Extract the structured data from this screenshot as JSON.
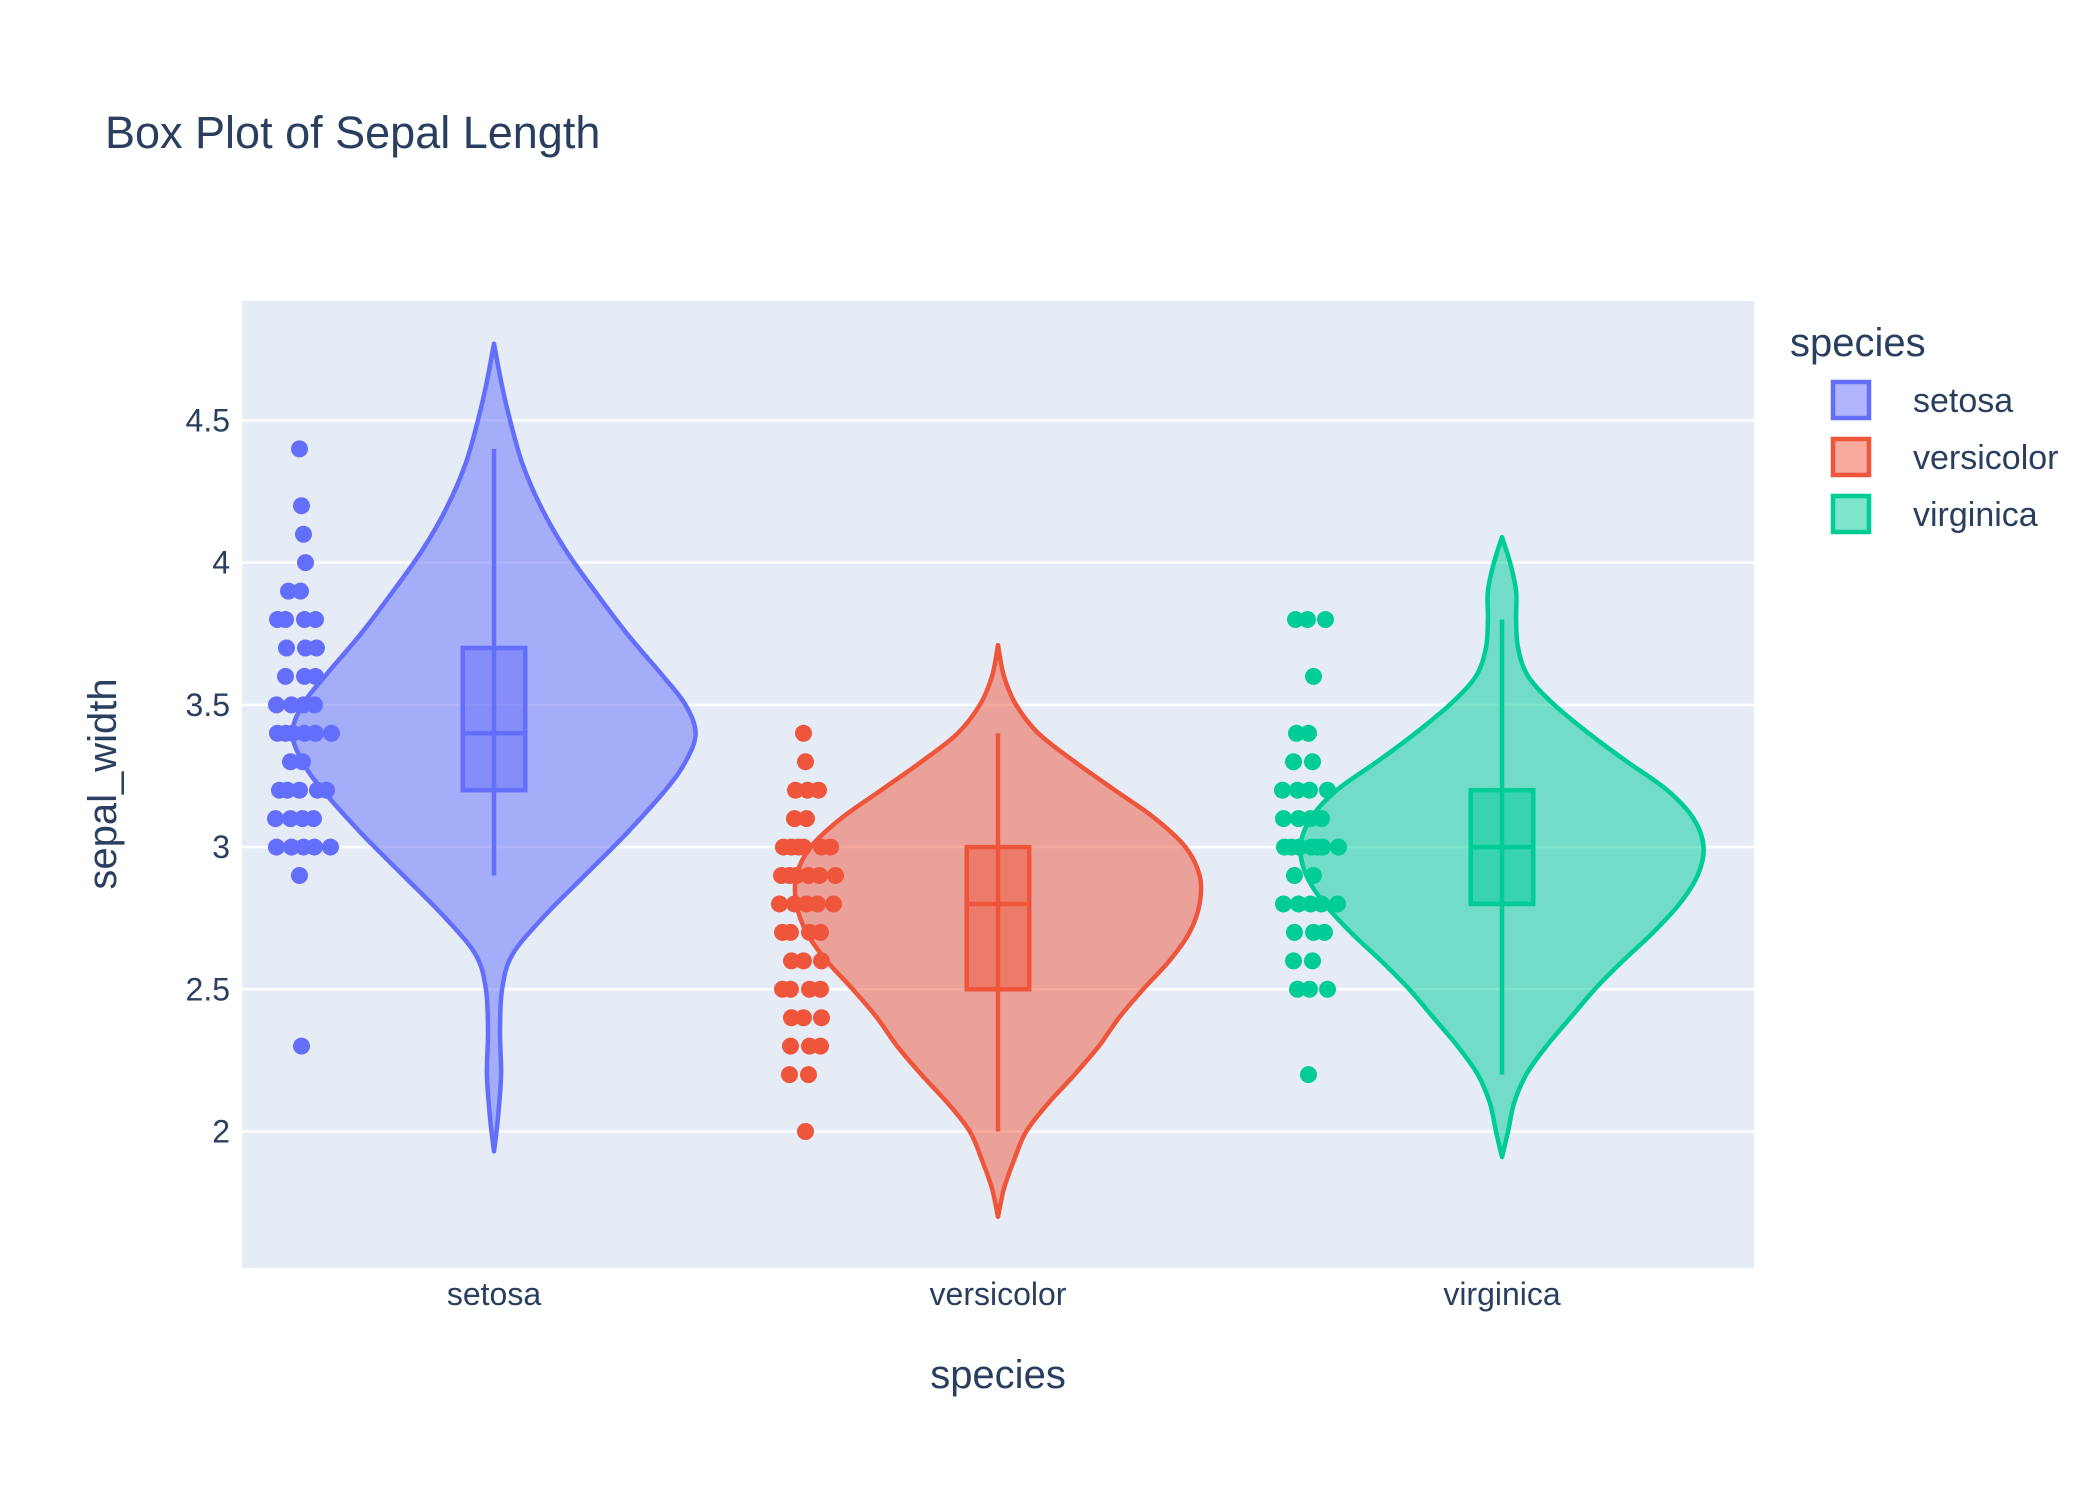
{
  "chart_data": {
    "type": "violin",
    "title": "Box Plot of Sepal Length",
    "xlabel": "species",
    "ylabel": "sepal_width",
    "categories": [
      "setosa",
      "versicolor",
      "virginica"
    ],
    "ylim": [
      1.52,
      4.92
    ],
    "yticks": [
      {
        "value": 2,
        "label": "2"
      },
      {
        "value": 2.5,
        "label": "2.5"
      },
      {
        "value": 3,
        "label": "3"
      },
      {
        "value": 3.5,
        "label": "3.5"
      },
      {
        "value": 4,
        "label": "4"
      },
      {
        "value": 4.5,
        "label": "4.5"
      }
    ],
    "grid": true,
    "legend": {
      "title": "species",
      "placement": "top-right"
    },
    "series": [
      {
        "name": "setosa",
        "color": "#636efa",
        "fill": "rgba(99,110,250,0.5)",
        "box": {
          "q1": 3.2,
          "median": 3.4,
          "q3": 3.7,
          "whisker_low": 2.9,
          "whisker_high": 4.4
        },
        "violin_range": [
          1.93,
          4.77
        ],
        "density": [
          [
            1.93,
            0.0
          ],
          [
            2.05,
            0.02
          ],
          [
            2.2,
            0.035
          ],
          [
            2.35,
            0.03
          ],
          [
            2.5,
            0.04
          ],
          [
            2.62,
            0.09
          ],
          [
            2.75,
            0.24
          ],
          [
            2.9,
            0.45
          ],
          [
            3.05,
            0.66
          ],
          [
            3.2,
            0.85
          ],
          [
            3.3,
            0.95
          ],
          [
            3.4,
            1.0
          ],
          [
            3.5,
            0.95
          ],
          [
            3.6,
            0.84
          ],
          [
            3.75,
            0.66
          ],
          [
            3.9,
            0.5
          ],
          [
            4.05,
            0.35
          ],
          [
            4.2,
            0.23
          ],
          [
            4.35,
            0.14
          ],
          [
            4.5,
            0.08
          ],
          [
            4.62,
            0.04
          ],
          [
            4.77,
            0.0
          ]
        ],
        "points": [
          4.4,
          4.2,
          4.1,
          4.0,
          3.9,
          3.9,
          3.8,
          3.8,
          3.8,
          3.8,
          3.7,
          3.7,
          3.7,
          3.6,
          3.6,
          3.6,
          3.5,
          3.5,
          3.5,
          3.5,
          3.4,
          3.4,
          3.4,
          3.4,
          3.4,
          3.4,
          3.3,
          3.3,
          3.2,
          3.2,
          3.2,
          3.2,
          3.2,
          3.1,
          3.1,
          3.1,
          3.1,
          3.0,
          3.0,
          3.0,
          3.0,
          3.0,
          2.9,
          2.3
        ]
      },
      {
        "name": "versicolor",
        "color": "#ef553b",
        "fill": "rgba(239,85,59,0.5)",
        "box": {
          "q1": 2.5,
          "median": 2.8,
          "q3": 3.0,
          "whisker_low": 2.0,
          "whisker_high": 3.4
        },
        "violin_range": [
          1.7,
          3.71
        ],
        "density": [
          [
            1.7,
            0.0
          ],
          [
            1.8,
            0.03
          ],
          [
            1.9,
            0.08
          ],
          [
            2.0,
            0.14
          ],
          [
            2.1,
            0.25
          ],
          [
            2.2,
            0.38
          ],
          [
            2.3,
            0.5
          ],
          [
            2.4,
            0.6
          ],
          [
            2.5,
            0.72
          ],
          [
            2.6,
            0.85
          ],
          [
            2.7,
            0.95
          ],
          [
            2.8,
            1.0
          ],
          [
            2.9,
            1.0
          ],
          [
            3.0,
            0.93
          ],
          [
            3.1,
            0.78
          ],
          [
            3.2,
            0.58
          ],
          [
            3.3,
            0.38
          ],
          [
            3.4,
            0.2
          ],
          [
            3.5,
            0.09
          ],
          [
            3.6,
            0.03
          ],
          [
            3.71,
            0.0
          ]
        ],
        "points": [
          3.4,
          3.3,
          3.2,
          3.2,
          3.2,
          3.1,
          3.1,
          3.0,
          3.0,
          3.0,
          3.0,
          3.0,
          3.0,
          2.9,
          2.9,
          2.9,
          2.9,
          2.9,
          2.9,
          2.8,
          2.8,
          2.8,
          2.8,
          2.8,
          2.7,
          2.7,
          2.7,
          2.7,
          2.6,
          2.6,
          2.6,
          2.5,
          2.5,
          2.5,
          2.5,
          2.4,
          2.4,
          2.4,
          2.3,
          2.3,
          2.3,
          2.2,
          2.2,
          2.0
        ]
      },
      {
        "name": "virginica",
        "color": "#00cc96",
        "fill": "rgba(0,204,150,0.5)",
        "box": {
          "q1": 2.8,
          "median": 3.0,
          "q3": 3.2,
          "whisker_low": 2.2,
          "whisker_high": 3.8
        },
        "violin_range": [
          1.91,
          4.09
        ],
        "density": [
          [
            1.91,
            0.0
          ],
          [
            2.0,
            0.03
          ],
          [
            2.1,
            0.06
          ],
          [
            2.2,
            0.12
          ],
          [
            2.3,
            0.22
          ],
          [
            2.4,
            0.34
          ],
          [
            2.5,
            0.46
          ],
          [
            2.6,
            0.6
          ],
          [
            2.7,
            0.75
          ],
          [
            2.8,
            0.88
          ],
          [
            2.9,
            0.97
          ],
          [
            3.0,
            1.0
          ],
          [
            3.1,
            0.95
          ],
          [
            3.2,
            0.82
          ],
          [
            3.3,
            0.62
          ],
          [
            3.4,
            0.43
          ],
          [
            3.5,
            0.26
          ],
          [
            3.6,
            0.13
          ],
          [
            3.7,
            0.08
          ],
          [
            3.8,
            0.07
          ],
          [
            3.9,
            0.07
          ],
          [
            4.0,
            0.04
          ],
          [
            4.09,
            0.0
          ]
        ],
        "points": [
          3.8,
          3.8,
          3.8,
          3.6,
          3.4,
          3.4,
          3.3,
          3.3,
          3.2,
          3.2,
          3.2,
          3.2,
          3.1,
          3.1,
          3.1,
          3.1,
          3.0,
          3.0,
          3.0,
          3.0,
          3.0,
          3.0,
          3.0,
          3.0,
          2.9,
          2.9,
          2.8,
          2.8,
          2.8,
          2.8,
          2.8,
          2.7,
          2.7,
          2.7,
          2.6,
          2.6,
          2.5,
          2.5,
          2.5,
          2.2
        ]
      }
    ]
  }
}
